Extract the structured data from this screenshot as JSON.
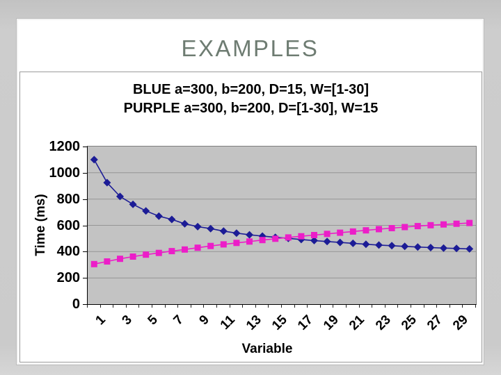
{
  "slide": {
    "title": "EXAMPLES"
  },
  "chart": {
    "title_line1": "BLUE a=300, b=200, D=15, W=[1-30]",
    "title_line2": "PURPLE a=300, b=200, D=[1-30], W=15",
    "y_axis": {
      "title": "Time (ms)",
      "ticks": [
        0,
        200,
        400,
        600,
        800,
        1000,
        1200
      ]
    },
    "x_axis": {
      "title": "Variable",
      "tick_labels": [
        1,
        3,
        5,
        7,
        9,
        11,
        13,
        15,
        17,
        19,
        21,
        23,
        25,
        27,
        29
      ]
    }
  },
  "colors": {
    "frame": "#cbcbcb",
    "slide_bg": "#ffffff",
    "slide_title": "#6E7C72",
    "chart_border": "#9a9a9a",
    "plot_bg": "#c3c3c3",
    "gridline": "#959595",
    "plot_border": "#7e7e7e",
    "axis_line": "#000000",
    "blue_series": "#1C1C96",
    "purple_series": "#EC1EC8"
  },
  "chart_data": {
    "type": "line",
    "title": "BLUE a=300, b=200, D=15, W=[1-30]  /  PURPLE a=300, b=200, D=[1-30], W=15",
    "xlabel": "Variable",
    "ylabel": "Time (ms)",
    "ylim": [
      0,
      1200
    ],
    "grid": true,
    "legend": "none",
    "x": [
      1,
      2,
      3,
      4,
      5,
      6,
      7,
      8,
      9,
      10,
      11,
      12,
      13,
      14,
      15,
      16,
      17,
      18,
      19,
      20,
      21,
      22,
      23,
      24,
      25,
      26,
      27,
      28,
      29,
      30
    ],
    "series": [
      {
        "name": "BLUE (D=15, W varies)",
        "color": "#1C1C96",
        "marker": "diamond",
        "values": [
          1100,
          925,
          820,
          760,
          710,
          670,
          645,
          612,
          590,
          575,
          556,
          541,
          528,
          518,
          509,
          501,
          492,
          484,
          477,
          470,
          463,
          456,
          450,
          445,
          440,
          435,
          431,
          427,
          424,
          421
        ]
      },
      {
        "name": "PURPLE (D varies, W=15)",
        "color": "#EC1EC8",
        "marker": "square",
        "values": [
          305,
          325,
          345,
          362,
          377,
          390,
          404,
          416,
          430,
          443,
          455,
          466,
          477,
          488,
          498,
          508,
          517,
          526,
          535,
          544,
          553,
          562,
          571,
          579,
          587,
          594,
          601,
          607,
          612,
          618
        ]
      }
    ]
  }
}
